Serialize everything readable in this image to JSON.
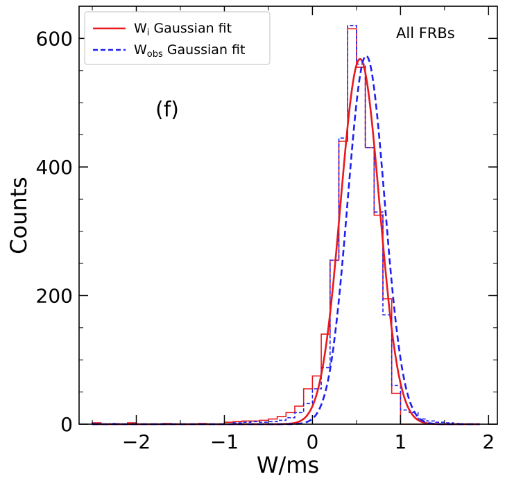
{
  "chart_data": {
    "type": "histogram",
    "title": "",
    "panel_label": "(f)",
    "annotation": "All FRBs",
    "xlabel": "W/ms",
    "ylabel": "Counts",
    "xlim": [
      -2.65,
      2.1
    ],
    "ylim": [
      0,
      650
    ],
    "x_ticks": [
      -2,
      -1,
      0,
      1,
      2
    ],
    "x_tick_labels": [
      "−2",
      "−1",
      "0",
      "1",
      "2"
    ],
    "y_ticks": [
      0,
      200,
      400,
      600
    ],
    "y_tick_labels": [
      "0",
      "200",
      "400",
      "600"
    ],
    "legend": {
      "position": "top-left",
      "entries": [
        {
          "base": "W",
          "sub": "i",
          "rest": " Gaussian fit",
          "color": "#e8181b",
          "style": "solid"
        },
        {
          "base": "W",
          "sub": "obs",
          "rest": " Gaussian fit",
          "color": "#1f1ff0",
          "style": "dashed"
        }
      ]
    },
    "series": [
      {
        "name": "W_i histogram",
        "kind": "step",
        "color": "#e8181b",
        "style": "solid",
        "edges": [
          -2.5,
          -2.4,
          -2.3,
          -2.2,
          -2.1,
          -2.0,
          -1.9,
          -1.8,
          -1.7,
          -1.6,
          -1.5,
          -1.4,
          -1.3,
          -1.2,
          -1.1,
          -1.0,
          -0.9,
          -0.8,
          -0.7,
          -0.6,
          -0.5,
          -0.4,
          -0.3,
          -0.2,
          -0.1,
          0.0,
          0.1,
          0.2,
          0.3,
          0.4,
          0.5,
          0.6,
          0.7,
          0.8,
          0.9,
          1.0,
          1.1,
          1.2,
          1.3,
          1.4,
          1.5,
          1.6
        ],
        "counts": [
          2,
          0,
          0,
          0,
          2,
          0,
          0,
          0,
          1,
          0,
          0,
          0,
          1,
          0,
          0,
          3,
          4,
          5,
          5,
          6,
          8,
          12,
          18,
          28,
          55,
          75,
          140,
          255,
          440,
          615,
          555,
          430,
          325,
          195,
          48,
          0,
          0,
          0,
          0,
          0,
          0
        ]
      },
      {
        "name": "W_obs histogram",
        "kind": "step",
        "color": "#1f1ff0",
        "style": "dashed",
        "edges": [
          -2.5,
          -2.4,
          -2.3,
          -2.2,
          -2.1,
          -2.0,
          -1.9,
          -1.8,
          -1.7,
          -1.6,
          -1.5,
          -1.4,
          -1.3,
          -1.2,
          -1.1,
          -1.0,
          -0.9,
          -0.8,
          -0.7,
          -0.6,
          -0.5,
          -0.4,
          -0.3,
          -0.2,
          -0.1,
          0.0,
          0.1,
          0.2,
          0.3,
          0.4,
          0.5,
          0.6,
          0.7,
          0.8,
          0.9,
          1.0,
          1.1,
          1.2,
          1.3,
          1.4,
          1.5,
          1.6,
          1.7
        ],
        "counts": [
          1,
          0,
          1,
          0,
          0,
          0,
          0,
          0,
          0,
          0,
          0,
          0,
          0,
          0,
          0,
          0,
          2,
          3,
          4,
          3,
          4,
          6,
          10,
          18,
          32,
          55,
          88,
          255,
          445,
          620,
          560,
          430,
          330,
          170,
          60,
          22,
          18,
          8,
          5,
          3,
          2,
          1
        ]
      },
      {
        "name": "W_i Gaussian fit",
        "kind": "gaussian",
        "color": "#e8181b",
        "style": "solid",
        "amplitude": 568,
        "mean": 0.54,
        "sigma": 0.22,
        "range": [
          -2.5,
          1.9
        ]
      },
      {
        "name": "W_obs Gaussian fit",
        "kind": "gaussian",
        "color": "#1f1ff0",
        "style": "dashed",
        "amplitude": 573,
        "mean": 0.61,
        "sigma": 0.21,
        "range": [
          -2.5,
          1.9
        ]
      }
    ]
  }
}
